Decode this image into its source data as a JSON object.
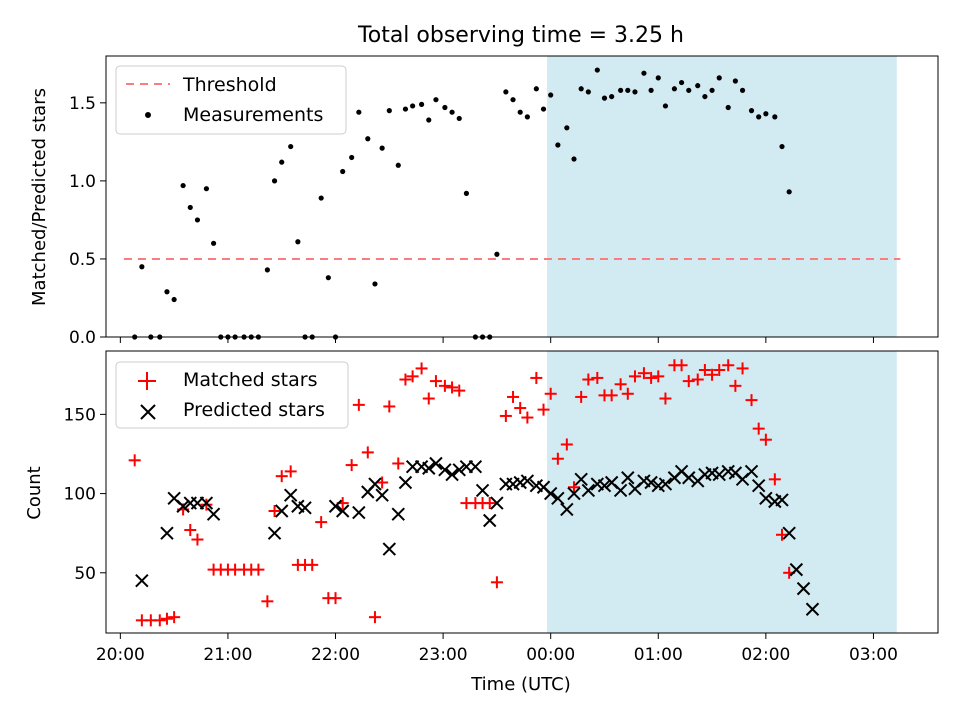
{
  "title": "Total observing time = 3.25 h",
  "colors": {
    "threshold": "#f87d7d",
    "measurements": "#000000",
    "matched": "#ff0000",
    "predicted": "#000000",
    "shade": "#add8e6"
  },
  "chart_data": [
    {
      "type": "scatter",
      "panel": "top",
      "ylabel": "Matched/Predicted stars",
      "xlabel": "",
      "xlim": [
        "19:52",
        "03:36"
      ],
      "ylim": [
        0,
        1.8
      ],
      "yticks": [
        0.0,
        0.5,
        1.0,
        1.5
      ],
      "ytick_labels": [
        "0.0",
        "0.5",
        "1.0",
        "1.5"
      ],
      "xticks": [
        "20:00",
        "21:00",
        "22:00",
        "23:00",
        "00:00",
        "01:00",
        "02:00",
        "03:00"
      ],
      "shaded_region": [
        "23:58",
        "03:13"
      ],
      "legend": {
        "position": "top-left",
        "entries": [
          "Threshold",
          "Measurements"
        ]
      },
      "threshold": {
        "name": "Threshold",
        "value": 0.5,
        "x_range": [
          "20:02",
          "03:15"
        ],
        "style": "dashed"
      },
      "series": [
        {
          "name": "Measurements",
          "marker": "dot",
          "x": [
            "20:08",
            "20:12",
            "20:17",
            "20:22",
            "20:26",
            "20:30",
            "20:35",
            "20:39",
            "20:43",
            "20:48",
            "20:52",
            "20:56",
            "21:00",
            "21:04",
            "21:09",
            "21:13",
            "21:17",
            "21:22",
            "21:26",
            "21:30",
            "21:35",
            "21:39",
            "21:43",
            "21:47",
            "21:52",
            "21:56",
            "22:00",
            "22:04",
            "22:09",
            "22:13",
            "22:18",
            "22:22",
            "22:26",
            "22:30",
            "22:35",
            "22:39",
            "22:43",
            "22:48",
            "22:52",
            "22:56",
            "23:01",
            "23:05",
            "23:09",
            "23:13",
            "23:18",
            "23:22",
            "23:26",
            "23:30",
            "23:35",
            "23:39",
            "23:43",
            "23:47",
            "23:52",
            "23:56",
            "24:00",
            "24:04",
            "24:09",
            "24:13",
            "24:17",
            "24:21",
            "24:26",
            "24:30",
            "24:34",
            "24:39",
            "24:43",
            "24:47",
            "24:52",
            "24:56",
            "25:00",
            "25:04",
            "25:09",
            "25:13",
            "25:17",
            "25:22",
            "25:26",
            "25:30",
            "25:34",
            "25:39",
            "25:43",
            "25:47",
            "25:52",
            "25:56",
            "26:00",
            "26:05",
            "26:09",
            "26:13",
            "26:17",
            "26:21",
            "26:26",
            "26:30",
            "26:34",
            "26:39",
            "26:43",
            "26:47",
            "26:52",
            "26:56",
            "27:00",
            "27:05",
            "27:09",
            "27:13"
          ],
          "y": [
            0.0,
            0.45,
            0.0,
            0.0,
            0.29,
            0.24,
            0.97,
            0.83,
            0.75,
            0.95,
            0.6,
            0.0,
            0.0,
            0.0,
            0.0,
            0.0,
            0.0,
            0.43,
            1.0,
            1.12,
            1.22,
            0.61,
            0.0,
            0.0,
            0.89,
            0.38,
            0.0,
            1.06,
            1.15,
            1.44,
            1.27,
            0.34,
            1.21,
            1.45,
            1.1,
            1.46,
            1.48,
            1.49,
            1.39,
            1.52,
            1.47,
            1.44,
            1.4,
            0.92,
            0.0,
            0.0,
            0.0,
            0.53,
            1.57,
            1.52,
            1.44,
            1.41,
            1.59,
            1.46,
            1.55,
            1.23,
            1.34,
            1.14,
            1.59,
            1.57,
            1.71,
            1.53,
            1.54,
            1.58,
            1.58,
            1.57,
            1.69,
            1.58,
            1.66,
            1.48,
            1.59,
            1.63,
            1.58,
            1.61,
            1.54,
            1.58,
            1.66,
            1.47,
            1.64,
            1.58,
            1.45,
            1.41,
            1.43,
            1.41,
            1.22,
            0.93,
            null,
            null,
            null,
            null,
            null,
            null,
            null,
            null,
            null,
            null,
            null,
            null,
            null,
            null
          ]
        }
      ]
    },
    {
      "type": "scatter",
      "panel": "bottom",
      "xlabel": "Time (UTC)",
      "ylabel": "Count",
      "xlim": [
        "19:52",
        "03:36"
      ],
      "ylim": [
        12,
        190
      ],
      "yticks": [
        50,
        100,
        150
      ],
      "ytick_labels": [
        "50",
        "100",
        "150"
      ],
      "xticks": [
        "20:00",
        "21:00",
        "22:00",
        "23:00",
        "00:00",
        "01:00",
        "02:00",
        "03:00"
      ],
      "xtick_labels": [
        "20:00",
        "21:00",
        "22:00",
        "23:00",
        "00:00",
        "01:00",
        "02:00",
        "03:00"
      ],
      "shaded_region": [
        "23:58",
        "03:13"
      ],
      "legend": {
        "position": "top-left",
        "entries": [
          "Matched stars",
          "Predicted stars"
        ]
      },
      "series": [
        {
          "name": "Matched stars",
          "marker": "plus",
          "x": [
            "20:08",
            "20:12",
            "20:17",
            "20:22",
            "20:26",
            "20:30",
            "20:35",
            "20:39",
            "20:43",
            "20:48",
            "20:52",
            "20:56",
            "21:00",
            "21:04",
            "21:09",
            "21:13",
            "21:17",
            "21:22",
            "21:26",
            "21:30",
            "21:35",
            "21:39",
            "21:43",
            "21:47",
            "21:52",
            "21:56",
            "22:00",
            "22:04",
            "22:09",
            "22:13",
            "22:18",
            "22:22",
            "22:26",
            "22:30",
            "22:35",
            "22:39",
            "22:43",
            "22:48",
            "22:52",
            "22:56",
            "23:01",
            "23:05",
            "23:09",
            "23:13",
            "23:18",
            "23:22",
            "23:26",
            "23:30",
            "23:35",
            "23:39",
            "23:43",
            "23:47",
            "23:52",
            "23:56",
            "24:00",
            "24:04",
            "24:09",
            "24:13",
            "24:17",
            "24:21",
            "24:26",
            "24:30",
            "24:34",
            "24:39",
            "24:43",
            "24:47",
            "24:52",
            "24:56",
            "25:00",
            "25:04",
            "25:09",
            "25:13",
            "25:17",
            "25:22",
            "25:26",
            "25:30",
            "25:34",
            "25:39",
            "25:43",
            "25:47",
            "25:52",
            "25:56",
            "26:00",
            "26:05",
            "26:09",
            "26:13",
            "26:17",
            "26:21",
            "26:26",
            "26:30",
            "26:34",
            "26:39",
            "26:43",
            "26:47",
            "26:52",
            "26:56",
            "27:00",
            "27:05",
            "27:09",
            "27:13"
          ],
          "y": [
            121,
            20,
            20,
            20,
            21,
            22,
            90,
            77,
            71,
            93,
            52,
            52,
            52,
            52,
            52,
            52,
            52,
            32,
            89,
            111,
            114,
            55,
            55,
            55,
            82,
            34,
            34,
            94,
            118,
            156,
            126,
            22,
            107,
            155,
            119,
            172,
            174,
            179,
            160,
            171,
            168,
            167,
            165,
            94,
            94,
            94,
            94,
            44,
            149,
            161,
            154,
            148,
            173,
            153,
            163,
            122,
            131,
            104,
            161,
            172,
            173,
            162,
            162,
            169,
            163,
            174,
            176,
            173,
            174,
            160,
            181,
            181,
            171,
            172,
            178,
            175,
            178,
            181,
            168,
            179,
            159,
            141,
            134,
            109,
            74,
            50,
            null,
            null,
            null,
            null,
            null,
            null,
            null,
            null,
            null,
            null,
            null,
            null,
            null,
            null
          ]
        },
        {
          "name": "Predicted stars",
          "marker": "x",
          "x": [
            "20:12",
            "20:26",
            "20:30",
            "20:35",
            "20:39",
            "20:43",
            "20:48",
            "20:52",
            "21:26",
            "21:30",
            "21:35",
            "21:39",
            "21:43",
            "22:00",
            "22:04",
            "22:13",
            "22:18",
            "22:22",
            "22:26",
            "22:30",
            "22:35",
            "22:39",
            "22:43",
            "22:48",
            "22:52",
            "22:56",
            "23:01",
            "23:05",
            "23:09",
            "23:13",
            "23:18",
            "23:22",
            "23:26",
            "23:30",
            "23:35",
            "23:39",
            "23:43",
            "23:47",
            "23:52",
            "23:56",
            "24:00",
            "24:04",
            "24:09",
            "24:13",
            "24:17",
            "24:21",
            "24:26",
            "24:30",
            "24:34",
            "24:39",
            "24:43",
            "24:47",
            "24:52",
            "24:56",
            "25:00",
            "25:04",
            "25:09",
            "25:13",
            "25:17",
            "25:22",
            "25:26",
            "25:30",
            "25:34",
            "25:39",
            "25:43",
            "25:47",
            "25:52",
            "25:56",
            "26:00",
            "26:05",
            "26:09",
            "26:13",
            "26:17",
            "26:21",
            "26:26",
            "26:30",
            "26:34",
            "26:39",
            "26:43",
            "26:47",
            "26:52",
            "26:56",
            "27:00",
            "27:05",
            "27:09",
            "27:13"
          ],
          "y": [
            45,
            75,
            97,
            92,
            94,
            94,
            94,
            87,
            75,
            89,
            99,
            92,
            91,
            92,
            89,
            88,
            101,
            106,
            99,
            65,
            87,
            107,
            117,
            117,
            116,
            119,
            115,
            112,
            115,
            117,
            117,
            102,
            83,
            94,
            106,
            106,
            107,
            108,
            105,
            104,
            100,
            97,
            90,
            100,
            109,
            102,
            106,
            105,
            107,
            102,
            110,
            103,
            108,
            107,
            105,
            106,
            110,
            114,
            110,
            108,
            112,
            113,
            112,
            114,
            113,
            109,
            114,
            105,
            97,
            95,
            96,
            75,
            52,
            40,
            27,
            null,
            null,
            null,
            null,
            null,
            null,
            null,
            null,
            null,
            null,
            null
          ]
        }
      ]
    }
  ]
}
